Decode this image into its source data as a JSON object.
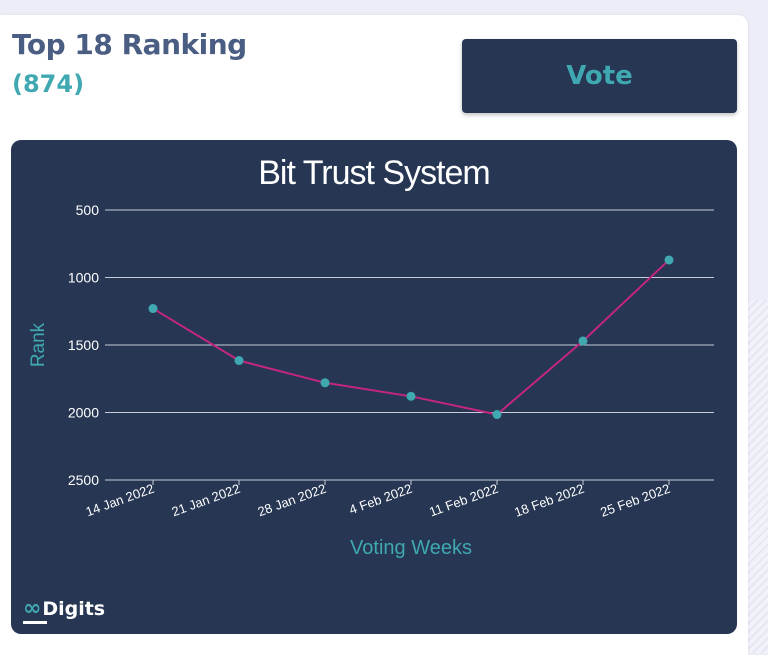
{
  "header": {
    "title": "Top 18 Ranking",
    "count": "(874)",
    "vote_label": "Vote"
  },
  "brand": {
    "logo_mark": "∞",
    "logo_text": "Digits"
  },
  "colors": {
    "line": "#c2267f",
    "point": "#3fa8b0",
    "accent": "#3fa8b0",
    "panel": "#263653"
  },
  "chart_data": {
    "type": "line",
    "title": "Bit Trust System",
    "xlabel": "Voting Weeks",
    "ylabel": "Rank",
    "categories": [
      "14 Jan 2022",
      "21 Jan 2022",
      "28 Jan 2022",
      "4 Feb 2022",
      "11 Feb 2022",
      "18 Feb 2022",
      "25 Feb 2022"
    ],
    "series": [
      {
        "values": [
          1230,
          1615,
          1780,
          1880,
          2015,
          1470,
          870
        ]
      }
    ],
    "yticks": [
      500,
      1000,
      1500,
      2000,
      2500
    ],
    "ylim": [
      500,
      2500
    ],
    "y_reversed": true,
    "grid": true
  }
}
